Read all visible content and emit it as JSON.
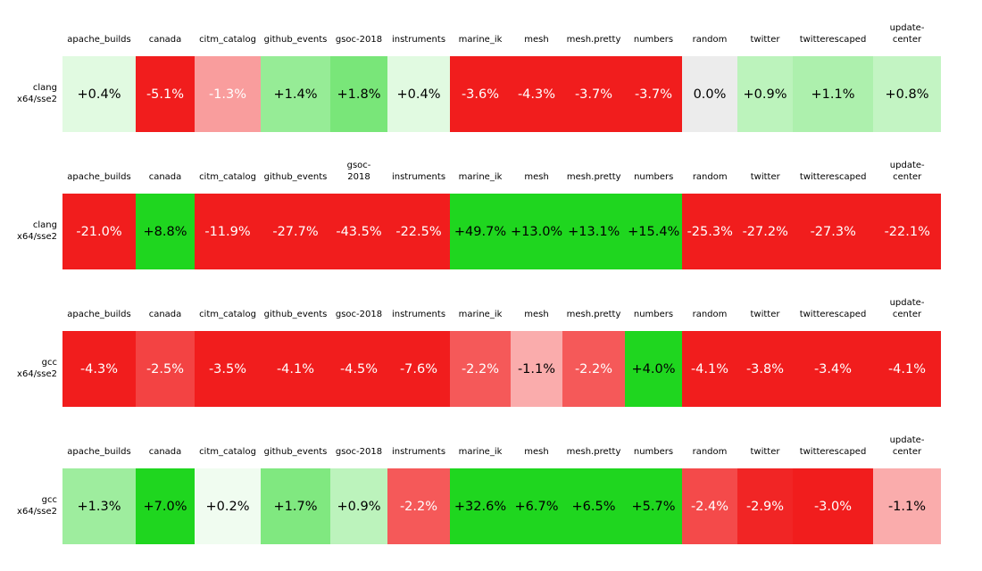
{
  "chart_data": {
    "type": "heatmap",
    "title": "",
    "unit": "%",
    "legend": "none",
    "color_positive": "#1fd61f",
    "color_negative": "#f11d1d",
    "color_zero": "#ececec",
    "saturation_percent": 3.0,
    "columns": [
      "apache_builds",
      "canada",
      "citm_catalog",
      "github_events",
      "gsoc-2018",
      "instruments",
      "marine_ik",
      "mesh",
      "mesh.pretty",
      "numbers",
      "random",
      "twitter",
      "twitterescaped",
      "update-center"
    ],
    "blocks": [
      {
        "row_label": [
          "clang",
          "x64/sse2"
        ],
        "two_line_header_indices": [
          13
        ],
        "values": [
          0.4,
          -5.1,
          -1.3,
          1.4,
          1.8,
          0.4,
          -3.6,
          -4.3,
          -3.7,
          -3.7,
          0.0,
          0.9,
          1.1,
          0.8
        ],
        "labels": [
          "+0.4%",
          "-5.1%",
          "-1.3%",
          "+1.4%",
          "+1.8%",
          "+0.4%",
          "-3.6%",
          "-4.3%",
          "-3.7%",
          "-3.7%",
          "0.0%",
          "+0.9%",
          "+1.1%",
          "+0.8%"
        ]
      },
      {
        "row_label": [
          "clang",
          "x64/sse2"
        ],
        "two_line_header_indices": [
          4,
          13
        ],
        "values": [
          -21.0,
          8.8,
          -11.9,
          -27.7,
          -43.5,
          -22.5,
          49.7,
          13.0,
          13.1,
          15.4,
          -25.3,
          -27.2,
          -27.3,
          -22.1
        ],
        "labels": [
          "-21.0%",
          "+8.8%",
          "-11.9%",
          "-27.7%",
          "-43.5%",
          "-22.5%",
          "+49.7%",
          "+13.0%",
          "+13.1%",
          "+15.4%",
          "-25.3%",
          "-27.2%",
          "-27.3%",
          "-22.1%"
        ]
      },
      {
        "row_label": [
          "gcc",
          "x64/sse2"
        ],
        "two_line_header_indices": [
          13
        ],
        "values": [
          -4.3,
          -2.5,
          -3.5,
          -4.1,
          -4.5,
          -7.6,
          -2.2,
          -1.1,
          -2.2,
          4.0,
          -4.1,
          -3.8,
          -3.4,
          -4.1
        ],
        "labels": [
          "-4.3%",
          "-2.5%",
          "-3.5%",
          "-4.1%",
          "-4.5%",
          "-7.6%",
          "-2.2%",
          "-1.1%",
          "-2.2%",
          "+4.0%",
          "-4.1%",
          "-3.8%",
          "-3.4%",
          "-4.1%"
        ]
      },
      {
        "row_label": [
          "gcc",
          "x64/sse2"
        ],
        "two_line_header_indices": [
          13
        ],
        "values": [
          1.3,
          7.0,
          0.2,
          1.7,
          0.9,
          -2.2,
          32.6,
          6.7,
          6.5,
          5.7,
          -2.4,
          -2.9,
          -3.0,
          -1.1
        ],
        "labels": [
          "+1.3%",
          "+7.0%",
          "+0.2%",
          "+1.7%",
          "+0.9%",
          "-2.2%",
          "+32.6%",
          "+6.7%",
          "+6.5%",
          "+5.7%",
          "-2.4%",
          "-2.9%",
          "-3.0%",
          "-1.1%"
        ]
      }
    ]
  }
}
